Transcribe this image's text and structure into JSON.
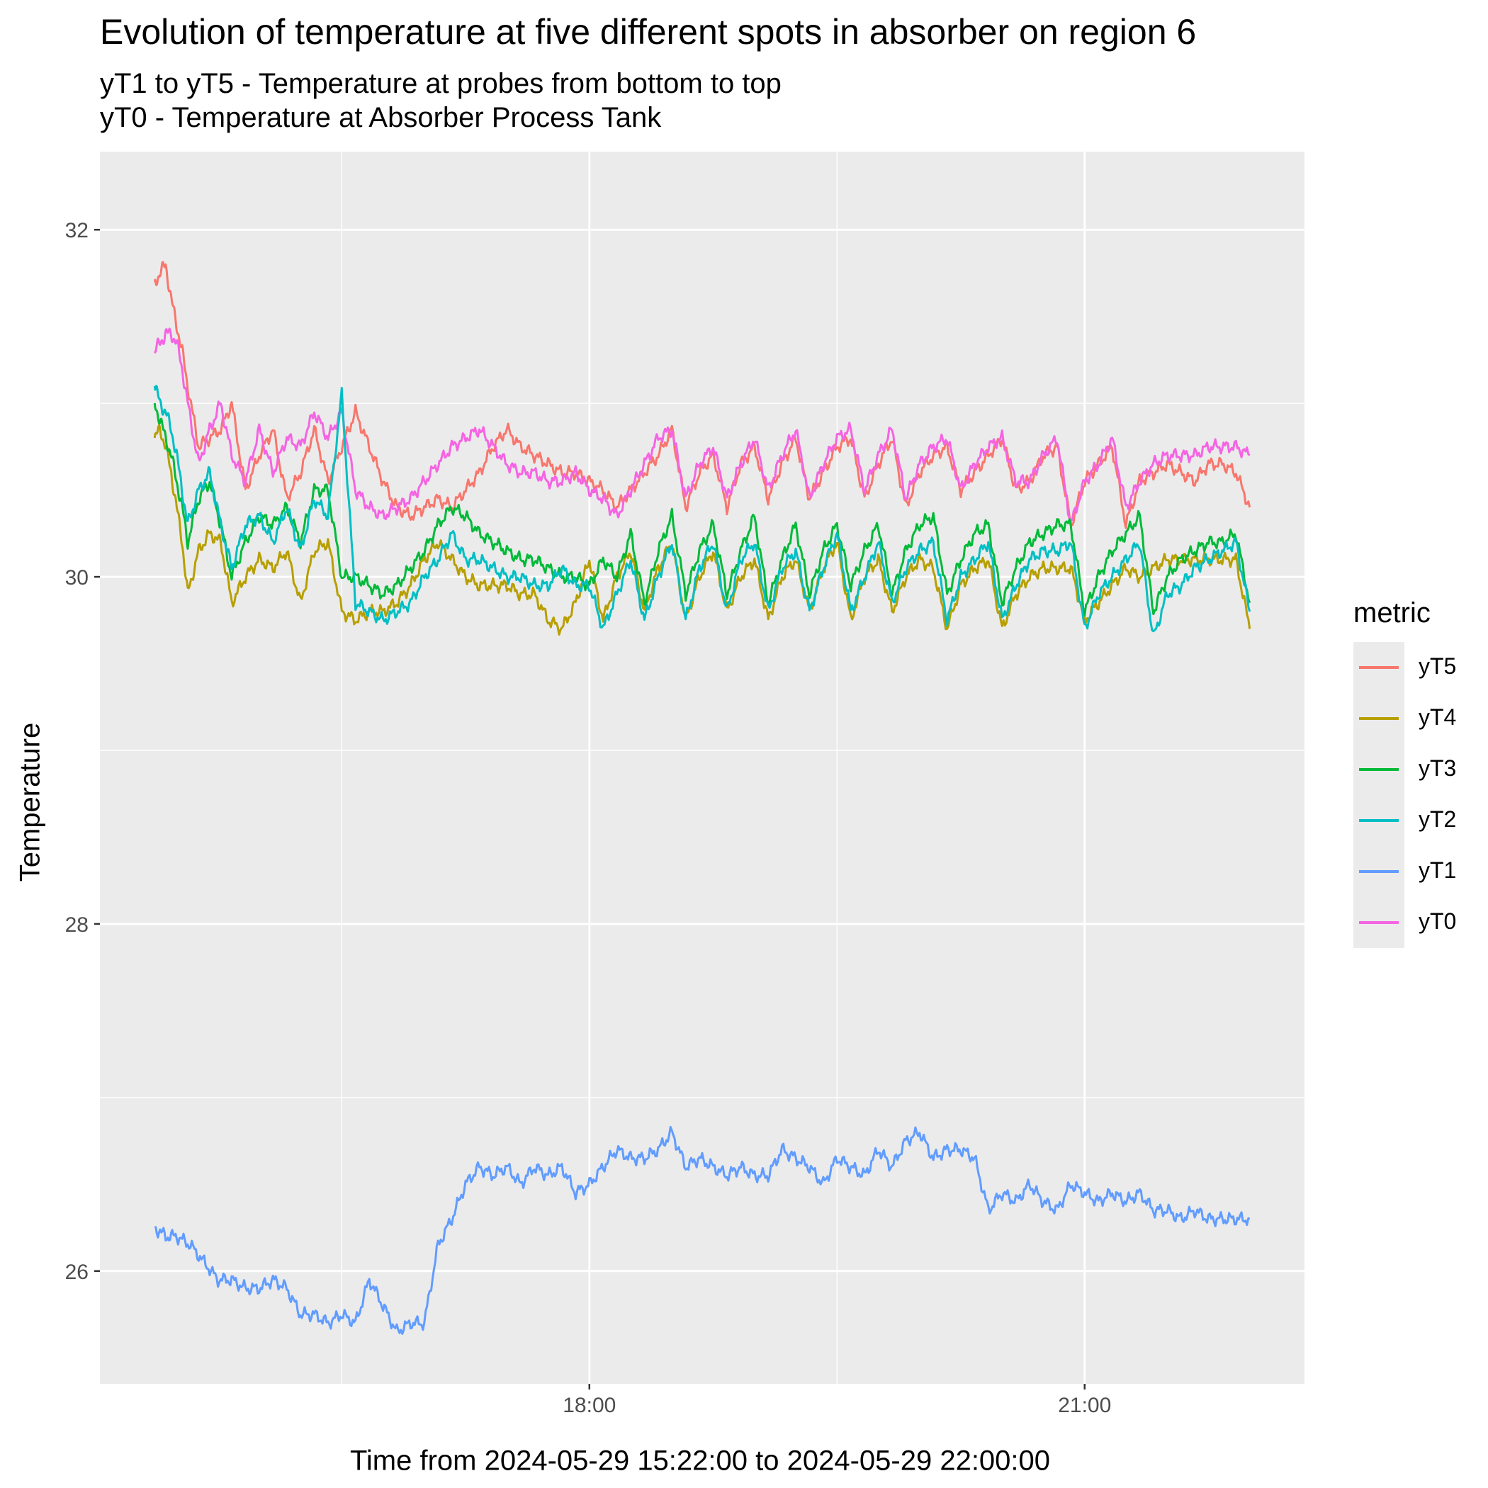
{
  "chart_data": {
    "type": "line",
    "title": "Evolution of temperature at five different spots in absorber on region 6",
    "subtitle": [
      "yT1 to yT5 - Temperature at probes from bottom to top",
      "yT0 - Temperature at Absorber Process Tank"
    ],
    "xlabel": "Time from 2024-05-29 15:22:00 to 2024-05-29 22:00:00",
    "ylabel": "Temperature",
    "x_ticks": [
      "18:00",
      "21:00"
    ],
    "y_ticks": [
      26,
      28,
      30,
      32
    ],
    "ylim": [
      25.35,
      32.45
    ],
    "x_range": [
      "15:22",
      "22:00"
    ],
    "grid": true,
    "legend_title": "metric",
    "legend_position": "right",
    "series": [
      {
        "name": "yT5",
        "color": "#F8766D",
        "x": [
          "15:22",
          "15:24",
          "15:26",
          "15:28",
          "15:30",
          "15:32",
          "15:34",
          "15:38",
          "15:42",
          "15:46",
          "15:50",
          "15:55",
          "16:00",
          "16:05",
          "16:10",
          "16:15",
          "16:20",
          "16:25",
          "16:30",
          "16:35",
          "16:40",
          "16:45",
          "16:50",
          "16:55",
          "17:00",
          "17:05",
          "17:10",
          "17:15",
          "17:20",
          "17:25",
          "17:30",
          "17:35",
          "17:40",
          "17:45",
          "17:50",
          "17:55",
          "18:00",
          "18:05",
          "18:10",
          "18:15",
          "18:20",
          "18:25",
          "18:30",
          "18:35",
          "18:40",
          "18:45",
          "18:50",
          "18:55",
          "19:00",
          "19:05",
          "19:10",
          "19:15",
          "19:20",
          "19:25",
          "19:30",
          "19:35",
          "19:40",
          "19:45",
          "19:50",
          "19:55",
          "20:00",
          "20:05",
          "20:10",
          "20:15",
          "20:20",
          "20:25",
          "20:30",
          "20:35",
          "20:40",
          "20:45",
          "20:50",
          "20:55",
          "21:00",
          "21:05",
          "21:10",
          "21:15",
          "21:20",
          "21:25",
          "21:30",
          "21:35",
          "21:40",
          "21:45",
          "21:50",
          "21:55",
          "22:00"
        ],
        "y": [
          31.7,
          31.75,
          31.8,
          31.6,
          31.45,
          31.3,
          31.1,
          30.75,
          30.8,
          30.85,
          31.0,
          30.5,
          30.7,
          30.85,
          30.45,
          30.6,
          30.85,
          30.55,
          30.75,
          30.95,
          30.75,
          30.55,
          30.4,
          30.35,
          30.4,
          30.45,
          30.4,
          30.5,
          30.6,
          30.75,
          30.85,
          30.75,
          30.7,
          30.65,
          30.6,
          30.6,
          30.55,
          30.5,
          30.4,
          30.5,
          30.6,
          30.7,
          30.85,
          30.4,
          30.6,
          30.7,
          30.4,
          30.65,
          30.75,
          30.45,
          30.65,
          30.8,
          30.45,
          30.6,
          30.75,
          30.8,
          30.45,
          30.65,
          30.8,
          30.4,
          30.6,
          30.7,
          30.75,
          30.5,
          30.6,
          30.7,
          30.8,
          30.5,
          30.55,
          30.7,
          30.75,
          30.3,
          30.55,
          30.65,
          30.75,
          30.3,
          30.55,
          30.6,
          30.65,
          30.6,
          30.55,
          30.65,
          30.65,
          30.6,
          30.4
        ]
      },
      {
        "name": "yT4",
        "color": "#B79F00",
        "x": [
          "15:22",
          "15:24",
          "15:26",
          "15:28",
          "15:30",
          "15:32",
          "15:34",
          "15:38",
          "15:42",
          "15:46",
          "15:50",
          "15:55",
          "16:00",
          "16:05",
          "16:10",
          "16:15",
          "16:20",
          "16:25",
          "16:30",
          "16:35",
          "16:40",
          "16:45",
          "16:50",
          "16:55",
          "17:00",
          "17:05",
          "17:10",
          "17:15",
          "17:20",
          "17:25",
          "17:30",
          "17:35",
          "17:40",
          "17:45",
          "17:50",
          "17:55",
          "18:00",
          "18:05",
          "18:10",
          "18:15",
          "18:20",
          "18:25",
          "18:30",
          "18:35",
          "18:40",
          "18:45",
          "18:50",
          "18:55",
          "19:00",
          "19:05",
          "19:10",
          "19:15",
          "19:20",
          "19:25",
          "19:30",
          "19:35",
          "19:40",
          "19:45",
          "19:50",
          "19:55",
          "20:00",
          "20:05",
          "20:10",
          "20:15",
          "20:20",
          "20:25",
          "20:30",
          "20:35",
          "20:40",
          "20:45",
          "20:50",
          "20:55",
          "21:00",
          "21:05",
          "21:10",
          "21:15",
          "21:20",
          "21:25",
          "21:30",
          "21:35",
          "21:40",
          "21:45",
          "21:50",
          "21:55",
          "22:00"
        ],
        "y": [
          30.8,
          30.85,
          30.75,
          30.6,
          30.4,
          30.2,
          29.9,
          30.15,
          30.25,
          30.2,
          29.85,
          30.0,
          30.1,
          30.05,
          30.15,
          29.85,
          30.15,
          30.2,
          29.8,
          29.75,
          29.8,
          29.8,
          29.85,
          29.95,
          30.1,
          30.2,
          30.1,
          30.0,
          29.95,
          29.95,
          29.95,
          29.9,
          29.9,
          29.75,
          29.7,
          29.85,
          30.1,
          29.75,
          30.0,
          30.15,
          29.8,
          30.05,
          30.2,
          29.75,
          30.0,
          30.15,
          29.8,
          30.0,
          30.1,
          29.75,
          30.0,
          30.1,
          29.8,
          30.05,
          30.2,
          29.75,
          30.0,
          30.1,
          29.8,
          30.0,
          30.1,
          30.05,
          29.7,
          29.95,
          30.05,
          30.1,
          29.7,
          29.9,
          30.0,
          30.05,
          30.05,
          30.05,
          29.75,
          29.85,
          29.95,
          30.05,
          30.0,
          30.05,
          30.1,
          30.1,
          30.1,
          30.1,
          30.1,
          30.1,
          29.7
        ]
      },
      {
        "name": "yT3",
        "color": "#00BA38",
        "x": [
          "15:22",
          "15:24",
          "15:26",
          "15:28",
          "15:30",
          "15:32",
          "15:34",
          "15:38",
          "15:42",
          "15:46",
          "15:50",
          "15:55",
          "16:00",
          "16:05",
          "16:10",
          "16:15",
          "16:20",
          "16:25",
          "16:30",
          "16:35",
          "16:40",
          "16:45",
          "16:50",
          "16:55",
          "17:00",
          "17:05",
          "17:10",
          "17:15",
          "17:20",
          "17:25",
          "17:30",
          "17:35",
          "17:40",
          "17:45",
          "17:50",
          "17:55",
          "18:00",
          "18:05",
          "18:10",
          "18:15",
          "18:20",
          "18:25",
          "18:30",
          "18:35",
          "18:40",
          "18:45",
          "18:50",
          "18:55",
          "19:00",
          "19:05",
          "19:10",
          "19:15",
          "19:20",
          "19:25",
          "19:30",
          "19:35",
          "19:40",
          "19:45",
          "19:50",
          "19:55",
          "20:00",
          "20:05",
          "20:10",
          "20:15",
          "20:20",
          "20:25",
          "20:30",
          "20:35",
          "20:40",
          "20:45",
          "20:50",
          "20:55",
          "21:00",
          "21:05",
          "21:10",
          "21:15",
          "21:20",
          "21:25",
          "21:30",
          "21:35",
          "21:40",
          "21:45",
          "21:50",
          "21:55",
          "22:00"
        ],
        "y": [
          31.0,
          30.9,
          30.8,
          30.7,
          30.55,
          30.4,
          30.2,
          30.45,
          30.55,
          30.3,
          30.0,
          30.2,
          30.35,
          30.3,
          30.4,
          30.2,
          30.5,
          30.5,
          30.0,
          30.0,
          29.95,
          29.9,
          29.95,
          30.05,
          30.15,
          30.3,
          30.4,
          30.35,
          30.25,
          30.2,
          30.15,
          30.1,
          30.1,
          30.05,
          30.0,
          30.0,
          29.95,
          30.1,
          30.0,
          30.25,
          29.85,
          30.15,
          30.35,
          29.9,
          30.15,
          30.3,
          29.9,
          30.15,
          30.35,
          29.85,
          30.1,
          30.3,
          29.9,
          30.15,
          30.3,
          29.95,
          30.15,
          30.3,
          29.9,
          30.15,
          30.3,
          30.35,
          29.9,
          30.1,
          30.25,
          30.3,
          29.85,
          30.05,
          30.2,
          30.25,
          30.3,
          30.3,
          29.8,
          30.0,
          30.15,
          30.25,
          30.35,
          29.8,
          30.0,
          30.1,
          30.15,
          30.2,
          30.2,
          30.25,
          29.85
        ]
      },
      {
        "name": "yT2",
        "color": "#00BFC4",
        "x": [
          "15:22",
          "15:24",
          "15:26",
          "15:28",
          "15:30",
          "15:32",
          "15:34",
          "15:38",
          "15:42",
          "15:46",
          "15:50",
          "15:55",
          "16:00",
          "16:05",
          "16:10",
          "16:15",
          "16:20",
          "16:25",
          "16:30",
          "16:35",
          "16:40",
          "16:45",
          "16:50",
          "16:55",
          "17:00",
          "17:05",
          "17:10",
          "17:15",
          "17:20",
          "17:25",
          "17:30",
          "17:35",
          "17:40",
          "17:45",
          "17:50",
          "17:55",
          "18:00",
          "18:05",
          "18:10",
          "18:15",
          "18:20",
          "18:25",
          "18:30",
          "18:35",
          "18:40",
          "18:45",
          "18:50",
          "18:55",
          "19:00",
          "19:05",
          "19:10",
          "19:15",
          "19:20",
          "19:25",
          "19:30",
          "19:35",
          "19:40",
          "19:45",
          "19:50",
          "19:55",
          "20:00",
          "20:05",
          "20:10",
          "20:15",
          "20:20",
          "20:25",
          "20:30",
          "20:35",
          "20:40",
          "20:45",
          "20:50",
          "20:55",
          "21:00",
          "21:05",
          "21:10",
          "21:15",
          "21:20",
          "21:25",
          "21:30",
          "21:35",
          "21:40",
          "21:45",
          "21:50",
          "21:55",
          "22:00"
        ],
        "y": [
          31.1,
          31.0,
          30.95,
          30.85,
          30.7,
          30.5,
          30.3,
          30.5,
          30.6,
          30.3,
          30.05,
          30.3,
          30.35,
          30.2,
          30.4,
          30.15,
          30.45,
          30.35,
          31.05,
          29.85,
          29.8,
          29.75,
          29.8,
          29.85,
          30.0,
          30.1,
          30.25,
          30.1,
          30.1,
          30.05,
          30.0,
          30.0,
          29.95,
          29.95,
          30.05,
          29.95,
          29.95,
          29.7,
          29.9,
          30.1,
          29.75,
          30.0,
          30.2,
          29.75,
          30.05,
          30.2,
          29.8,
          30.1,
          30.2,
          29.8,
          30.05,
          30.15,
          29.8,
          30.05,
          30.25,
          29.8,
          30.0,
          30.2,
          29.85,
          30.05,
          30.15,
          30.2,
          29.75,
          30.0,
          30.1,
          30.2,
          29.75,
          29.95,
          30.1,
          30.15,
          30.15,
          30.2,
          29.7,
          29.9,
          30.0,
          30.1,
          30.2,
          29.65,
          29.9,
          29.95,
          30.05,
          30.1,
          30.15,
          30.2,
          29.8
        ]
      },
      {
        "name": "yT1",
        "color": "#619CFF",
        "x": [
          "15:22",
          "15:26",
          "15:30",
          "15:35",
          "15:40",
          "15:45",
          "15:50",
          "15:55",
          "16:00",
          "16:05",
          "16:10",
          "16:15",
          "16:20",
          "16:25",
          "16:30",
          "16:35",
          "16:40",
          "16:45",
          "16:50",
          "16:55",
          "17:00",
          "17:05",
          "17:10",
          "17:15",
          "17:20",
          "17:25",
          "17:30",
          "17:35",
          "17:40",
          "17:45",
          "17:50",
          "17:55",
          "18:00",
          "18:05",
          "18:10",
          "18:15",
          "18:20",
          "18:25",
          "18:30",
          "18:35",
          "18:40",
          "18:45",
          "18:50",
          "18:55",
          "19:00",
          "19:05",
          "19:10",
          "19:15",
          "19:20",
          "19:25",
          "19:30",
          "19:35",
          "19:40",
          "19:45",
          "19:50",
          "19:55",
          "20:00",
          "20:05",
          "20:10",
          "20:15",
          "20:20",
          "20:25",
          "20:30",
          "20:35",
          "20:40",
          "20:45",
          "20:50",
          "20:55",
          "21:00",
          "21:05",
          "21:10",
          "21:15",
          "21:20",
          "21:25",
          "21:30",
          "21:35",
          "21:40",
          "21:45",
          "21:50",
          "21:55",
          "22:00"
        ],
        "y": [
          26.25,
          26.2,
          26.2,
          26.15,
          26.05,
          25.95,
          25.95,
          25.9,
          25.9,
          25.95,
          25.9,
          25.75,
          25.75,
          25.7,
          25.75,
          25.7,
          25.95,
          25.8,
          25.65,
          25.7,
          25.7,
          26.15,
          26.3,
          26.5,
          26.6,
          26.55,
          26.6,
          26.5,
          26.6,
          26.55,
          26.6,
          26.45,
          26.5,
          26.6,
          26.7,
          26.65,
          26.65,
          26.7,
          26.8,
          26.6,
          26.65,
          26.6,
          26.55,
          26.6,
          26.55,
          26.55,
          26.7,
          26.65,
          26.6,
          26.5,
          26.65,
          26.6,
          26.55,
          26.7,
          26.6,
          26.75,
          26.8,
          26.65,
          26.7,
          26.7,
          26.65,
          26.35,
          26.45,
          26.4,
          26.5,
          26.4,
          26.35,
          26.5,
          26.45,
          26.4,
          26.45,
          26.4,
          26.45,
          26.35,
          26.35,
          26.3,
          26.35,
          26.3,
          26.3,
          26.3,
          26.3
        ]
      },
      {
        "name": "yT0",
        "color": "#F564E3",
        "x": [
          "15:22",
          "15:24",
          "15:26",
          "15:28",
          "15:30",
          "15:32",
          "15:34",
          "15:38",
          "15:42",
          "15:46",
          "15:50",
          "15:55",
          "16:00",
          "16:05",
          "16:10",
          "16:15",
          "16:20",
          "16:25",
          "16:30",
          "16:35",
          "16:40",
          "16:45",
          "16:50",
          "16:55",
          "17:00",
          "17:05",
          "17:10",
          "17:15",
          "17:20",
          "17:25",
          "17:30",
          "17:35",
          "17:40",
          "17:45",
          "17:50",
          "17:55",
          "18:00",
          "18:05",
          "18:10",
          "18:15",
          "18:20",
          "18:25",
          "18:30",
          "18:35",
          "18:40",
          "18:45",
          "18:50",
          "18:55",
          "19:00",
          "19:05",
          "19:10",
          "19:15",
          "19:20",
          "19:25",
          "19:30",
          "19:35",
          "19:40",
          "19:45",
          "19:50",
          "19:55",
          "20:00",
          "20:05",
          "20:10",
          "20:15",
          "20:20",
          "20:25",
          "20:30",
          "20:35",
          "20:40",
          "20:45",
          "20:50",
          "20:55",
          "21:00",
          "21:05",
          "21:10",
          "21:15",
          "21:20",
          "21:25",
          "21:30",
          "21:35",
          "21:40",
          "21:45",
          "21:50",
          "21:55",
          "22:00"
        ],
        "y": [
          31.3,
          31.35,
          31.4,
          31.4,
          31.35,
          31.2,
          31.0,
          30.65,
          30.85,
          31.0,
          30.7,
          30.55,
          30.85,
          30.6,
          30.8,
          30.75,
          30.95,
          30.8,
          30.95,
          30.5,
          30.4,
          30.35,
          30.4,
          30.45,
          30.55,
          30.65,
          30.75,
          30.8,
          30.85,
          30.75,
          30.65,
          30.6,
          30.6,
          30.55,
          30.55,
          30.6,
          30.5,
          30.45,
          30.35,
          30.5,
          30.65,
          30.8,
          30.85,
          30.45,
          30.65,
          30.75,
          30.45,
          30.65,
          30.8,
          30.5,
          30.7,
          30.85,
          30.45,
          30.65,
          30.8,
          30.85,
          30.5,
          30.7,
          30.85,
          30.45,
          30.65,
          30.75,
          30.8,
          30.5,
          30.65,
          30.75,
          30.8,
          30.55,
          30.55,
          30.7,
          30.8,
          30.3,
          30.55,
          30.65,
          30.8,
          30.4,
          30.55,
          30.65,
          30.7,
          30.7,
          30.7,
          30.75,
          30.75,
          30.75,
          30.7
        ]
      }
    ]
  }
}
